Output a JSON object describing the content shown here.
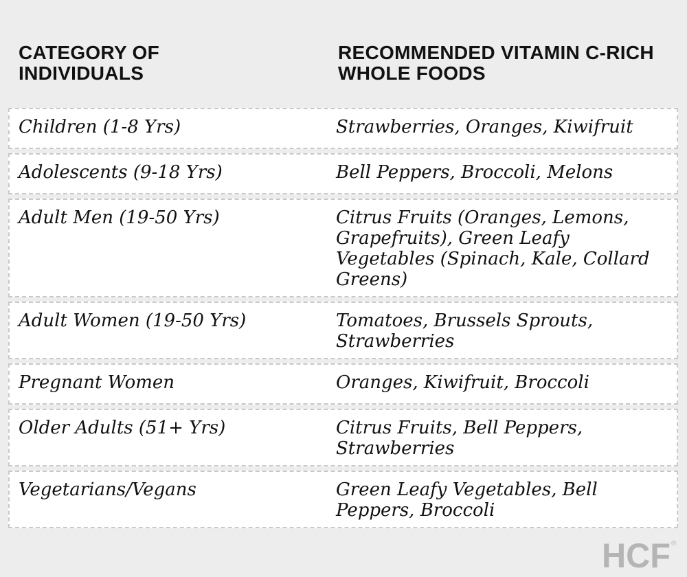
{
  "header": {
    "col1": "CATEGORY OF INDIVIDUALS",
    "col2": "RECOMMENDED VITAMIN C-RICH WHOLE FOODS"
  },
  "rows": [
    {
      "category": "Children (1-8 Yrs)",
      "foods": "Strawberries, Oranges, Kiwifruit"
    },
    {
      "category": "Adolescents (9-18 Yrs)",
      "foods": "Bell Peppers, Broccoli, Melons"
    },
    {
      "category": "Adult Men (19-50 Yrs)",
      "foods": "Citrus Fruits (Oranges, Lemons, Grapefruits), Green Leafy Vegetables (Spinach, Kale, Collard Greens)"
    },
    {
      "category": "Adult Women (19-50 Yrs)",
      "foods": "Tomatoes, Brussels Sprouts, Strawberries"
    },
    {
      "category": "Pregnant Women",
      "foods": "Oranges, Kiwifruit, Broccoli"
    },
    {
      "category": "Older Adults (51+ Yrs)",
      "foods": "Citrus Fruits, Bell Peppers, Strawberries"
    },
    {
      "category": "Vegetarians/Vegans",
      "foods": "Green Leafy Vegetables, Bell Peppers, Broccoli"
    }
  ],
  "logo": {
    "text": "HCF",
    "mark": "®",
    "color": "#b5b5b5"
  }
}
